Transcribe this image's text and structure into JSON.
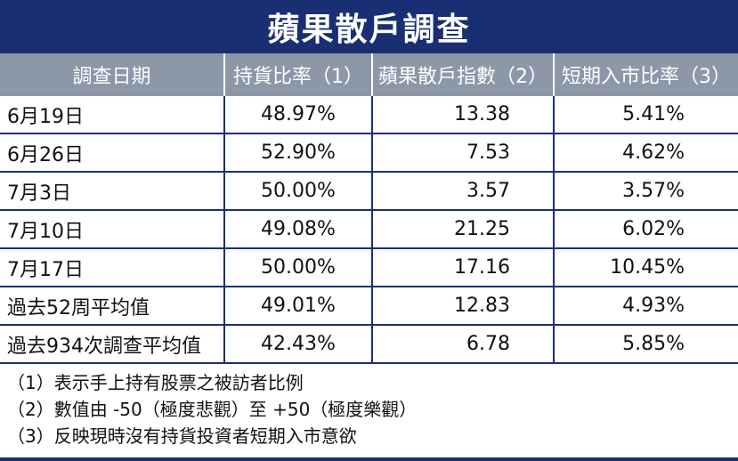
{
  "title": "蘋果散戶調查",
  "headers": [
    "調查日期",
    "持貨比率（1）",
    "蘋果散戶指數（2）",
    "短期入市比率（3）"
  ],
  "rows": [
    [
      "6月19日",
      "48.97%",
      "13.38",
      "5.41%"
    ],
    [
      "6月26日",
      "52.90%",
      "7.53",
      "4.62%"
    ],
    [
      "7月3日",
      "50.00%",
      "3.57",
      "3.57%"
    ],
    [
      "7月10日",
      "49.08%",
      "21.25",
      "6.02%"
    ],
    [
      "7月17日",
      "50.00%",
      "17.16",
      "10.45%"
    ],
    [
      "過去52周平均值",
      "49.01%",
      "12.83",
      "4.93%"
    ],
    [
      "過去934次調查平均值",
      "42.43%",
      "6.78",
      "5.85%"
    ]
  ],
  "notes": [
    "（1）表示手上持有股票之被訪者比例",
    "（2）數值由 -50（極度悲觀）至 +50（極度樂觀）",
    "（3）反映現時沒有持貨投資者短期入市意欲"
  ]
}
